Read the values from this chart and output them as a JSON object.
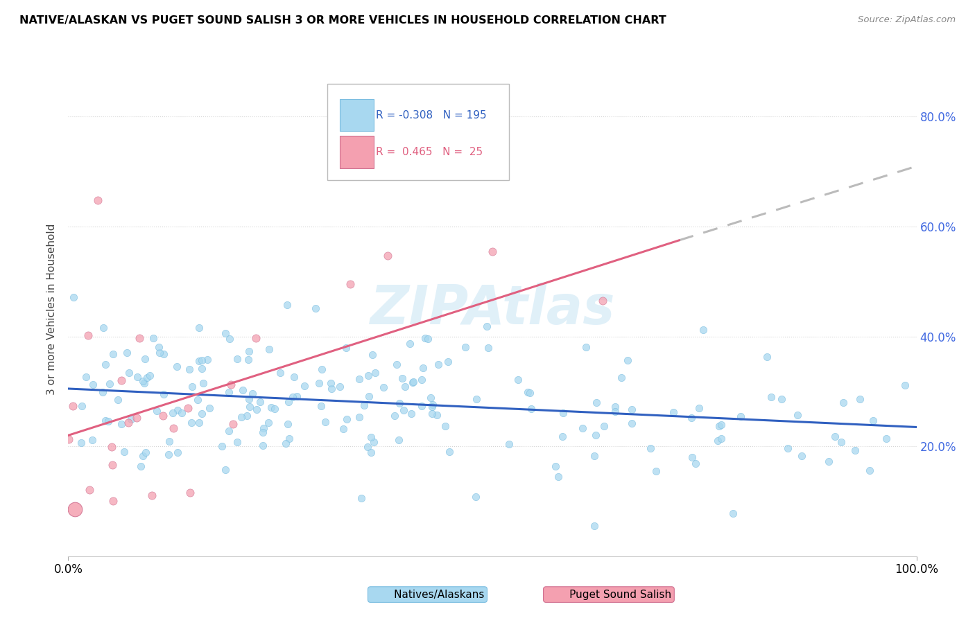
{
  "title": "NATIVE/ALASKAN VS PUGET SOUND SALISH 3 OR MORE VEHICLES IN HOUSEHOLD CORRELATION CHART",
  "source": "Source: ZipAtlas.com",
  "ylabel": "3 or more Vehicles in Household",
  "y_ticks_labels": [
    "20.0%",
    "40.0%",
    "60.0%",
    "80.0%"
  ],
  "y_tick_vals": [
    0.2,
    0.4,
    0.6,
    0.8
  ],
  "x_range": [
    0.0,
    1.0
  ],
  "y_range": [
    0.0,
    0.9
  ],
  "legend_blue_r": "-0.308",
  "legend_blue_n": "195",
  "legend_pink_r": "0.465",
  "legend_pink_n": "25",
  "watermark": "ZIPAtlas",
  "blue_color": "#A8D8F0",
  "pink_color": "#F4A0B0",
  "blue_line_color": "#3060C0",
  "pink_line_color": "#E06080",
  "gray_dash_color": "#BBBBBB",
  "dot_size_blue": 55,
  "dot_size_pink": 65,
  "dot_alpha": 0.75,
  "blue_line_start_x": 0.0,
  "blue_line_start_y": 0.305,
  "blue_line_end_x": 1.0,
  "blue_line_end_y": 0.235,
  "pink_line_start_x": 0.0,
  "pink_line_start_y": 0.22,
  "pink_line_end_x": 0.72,
  "pink_line_end_y": 0.575,
  "gray_line_start_x": 0.72,
  "gray_line_start_y": 0.575,
  "gray_line_end_x": 1.0,
  "gray_line_end_y": 0.71
}
